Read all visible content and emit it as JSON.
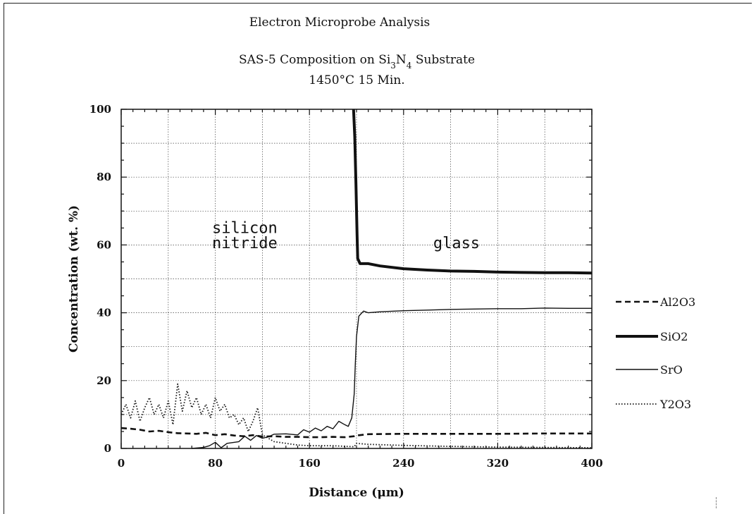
{
  "header": {
    "title": "Electron Microprobe Analysis",
    "subtitle_parts": [
      "SAS-5 Composition on Si",
      "3",
      "N",
      "4",
      " Substrate"
    ],
    "subtitle_line2": "1450°C 15 Min."
  },
  "chart_data": {
    "type": "line",
    "xlabel": "Distance (μm)",
    "ylabel": "Concentration (wt. %)",
    "xlim": [
      0,
      400
    ],
    "ylim": [
      0,
      100
    ],
    "xticks": [
      0,
      80,
      160,
      240,
      320,
      400
    ],
    "yticks": [
      0,
      20,
      40,
      60,
      80,
      100
    ],
    "grid": true,
    "legend_position": "right",
    "annotations": [
      {
        "text": "silicon",
        "x": 105,
        "y": 63.5
      },
      {
        "text": "nitride",
        "x": 105,
        "y": 59
      },
      {
        "text": "glass",
        "x": 285,
        "y": 59
      }
    ],
    "series": [
      {
        "name": "Al2O3",
        "style": "dashed",
        "x": [
          0,
          8,
          16,
          24,
          32,
          40,
          48,
          56,
          64,
          72,
          80,
          88,
          96,
          104,
          112,
          120,
          130,
          140,
          150,
          160,
          170,
          180,
          190,
          198,
          200,
          210,
          240,
          280,
          320,
          360,
          400
        ],
        "y": [
          6,
          5.8,
          5.5,
          5,
          5.2,
          4.8,
          4.5,
          4.4,
          4.3,
          4.6,
          3.9,
          4.2,
          3.8,
          3.6,
          3.9,
          3.5,
          3.6,
          3.4,
          3.4,
          3.3,
          3.3,
          3.4,
          3.3,
          3.6,
          3.8,
          4.2,
          4.3,
          4.3,
          4.3,
          4.4,
          4.4
        ]
      },
      {
        "name": "SiO2",
        "style": "thick",
        "x": [
          197.5,
          198.5,
          199.5,
          200.5,
          201,
          203,
          210,
          220,
          240,
          260,
          280,
          300,
          320,
          340,
          360,
          380,
          400
        ],
        "y": [
          100,
          92,
          78,
          63,
          56,
          54.5,
          54.5,
          53.8,
          53,
          52.6,
          52.3,
          52.2,
          52,
          51.9,
          51.8,
          51.8,
          51.7
        ]
      },
      {
        "name": "SrO",
        "style": "solid",
        "x": [
          60,
          70,
          75,
          80,
          85,
          90,
          100,
          105,
          110,
          115,
          120,
          125,
          130,
          140,
          150,
          155,
          160,
          165,
          170,
          175,
          180,
          185,
          190,
          193,
          196,
          198,
          199,
          200,
          202,
          206,
          210,
          220,
          240,
          260,
          280,
          300,
          320,
          340,
          360,
          380,
          400
        ],
        "y": [
          0,
          0.3,
          0.8,
          1.8,
          0.2,
          1.5,
          2,
          3.6,
          2.4,
          3.8,
          3,
          3.4,
          4.2,
          4.3,
          4,
          5.5,
          4.8,
          6,
          5.2,
          6.5,
          5.8,
          8,
          7,
          6.5,
          9,
          16,
          25,
          33,
          39,
          40.5,
          40,
          40.3,
          40.6,
          40.8,
          41,
          41.1,
          41.2,
          41.2,
          41.4,
          41.3,
          41.3
        ]
      },
      {
        "name": "Y2O3",
        "style": "dotted",
        "x": [
          0,
          4,
          8,
          12,
          16,
          20,
          24,
          28,
          32,
          36,
          40,
          44,
          48,
          52,
          56,
          60,
          64,
          68,
          72,
          76,
          80,
          84,
          88,
          92,
          96,
          100,
          104,
          108,
          112,
          116,
          120,
          125,
          130,
          140,
          150,
          160,
          180,
          198,
          200,
          210,
          240,
          280,
          320,
          360,
          400
        ],
        "y": [
          10,
          13,
          9,
          14,
          8,
          12,
          15,
          10,
          13,
          9,
          14,
          7,
          19,
          11,
          17,
          12,
          15,
          10,
          13,
          9,
          15,
          11,
          13,
          9,
          10,
          7,
          9,
          5,
          8,
          12,
          4,
          3,
          2,
          1.5,
          1,
          0.8,
          0.8,
          0.5,
          1.5,
          1.2,
          0.9,
          0.6,
          0.4,
          0.3,
          0.2
        ]
      }
    ]
  }
}
